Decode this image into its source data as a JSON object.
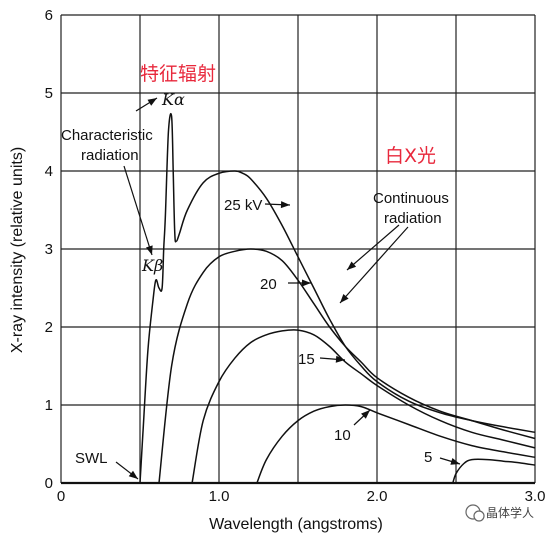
{
  "chart_data": {
    "type": "line",
    "title": "",
    "xlabel": "Wavelength (angstroms)",
    "ylabel": "X-ray intensity (relative units)",
    "xlim": [
      0,
      3.0
    ],
    "ylim": [
      0,
      6
    ],
    "xticks": [
      "0",
      "1.0",
      "2.0",
      "3.0"
    ],
    "yticks": [
      "0",
      "1",
      "2",
      "3",
      "4",
      "5",
      "6"
    ],
    "grid": true,
    "series": [
      {
        "name": "25 kV",
        "x": [
          0.5,
          0.52,
          0.55,
          0.58,
          0.6,
          0.62,
          0.64,
          0.65,
          0.66,
          0.68,
          0.7,
          0.71,
          0.72,
          0.73,
          0.75,
          0.8,
          0.9,
          1.0,
          1.1,
          1.15,
          1.2,
          1.3,
          1.4,
          1.5,
          1.6,
          1.7,
          1.8,
          1.9,
          2.0,
          2.2,
          2.4,
          2.6,
          2.8,
          3.0
        ],
        "y": [
          0,
          0.7,
          1.7,
          2.3,
          2.6,
          2.5,
          2.5,
          3.0,
          3.4,
          4.5,
          4.7,
          4.0,
          3.2,
          3.1,
          3.2,
          3.5,
          3.85,
          3.97,
          4.0,
          3.97,
          3.9,
          3.65,
          3.3,
          2.9,
          2.5,
          2.1,
          1.75,
          1.5,
          1.3,
          1.05,
          0.9,
          0.8,
          0.72,
          0.65
        ]
      },
      {
        "name": "20",
        "x": [
          0.62,
          0.7,
          0.8,
          0.9,
          1.0,
          1.1,
          1.2,
          1.3,
          1.4,
          1.5,
          1.6,
          1.7,
          1.8,
          1.9,
          2.0,
          2.2,
          2.4,
          2.6,
          2.8,
          3.0
        ],
        "y": [
          0,
          1.5,
          2.3,
          2.7,
          2.9,
          2.97,
          3.0,
          2.97,
          2.85,
          2.6,
          2.3,
          2.0,
          1.75,
          1.55,
          1.35,
          1.1,
          0.92,
          0.8,
          0.68,
          0.57
        ]
      },
      {
        "name": "15",
        "x": [
          0.83,
          0.9,
          1.0,
          1.1,
          1.2,
          1.3,
          1.4,
          1.5,
          1.6,
          1.7,
          1.8,
          1.9,
          2.0,
          2.2,
          2.4,
          2.6,
          2.8,
          3.0
        ],
        "y": [
          0,
          0.8,
          1.3,
          1.6,
          1.8,
          1.9,
          1.95,
          1.96,
          1.9,
          1.75,
          1.55,
          1.4,
          1.25,
          1.0,
          0.8,
          0.65,
          0.55,
          0.45
        ]
      },
      {
        "name": "10",
        "x": [
          1.24,
          1.3,
          1.4,
          1.5,
          1.6,
          1.7,
          1.8,
          1.9,
          2.0,
          2.2,
          2.4,
          2.6,
          2.8,
          3.0
        ],
        "y": [
          0,
          0.3,
          0.6,
          0.8,
          0.92,
          0.98,
          1.0,
          0.98,
          0.9,
          0.75,
          0.6,
          0.48,
          0.4,
          0.33
        ]
      },
      {
        "name": "5",
        "x": [
          2.48,
          2.5,
          2.55,
          2.6,
          2.7,
          2.8,
          2.9,
          3.0
        ],
        "y": [
          0,
          0.12,
          0.25,
          0.3,
          0.3,
          0.28,
          0.26,
          0.23
        ]
      }
    ],
    "annotations": {
      "characteristic": "Characteristic radiation",
      "characteristic_cn": "特征辐射",
      "k_alpha": "Kα",
      "k_beta": "Kβ",
      "continuous": "Continuous radiation",
      "continuous_cn": "白X光",
      "swl": "SWL",
      "kv25": "25 kV",
      "kv20": "20",
      "kv15": "15",
      "kv10": "10",
      "kv5": "5"
    },
    "watermark": "晶体学人"
  }
}
